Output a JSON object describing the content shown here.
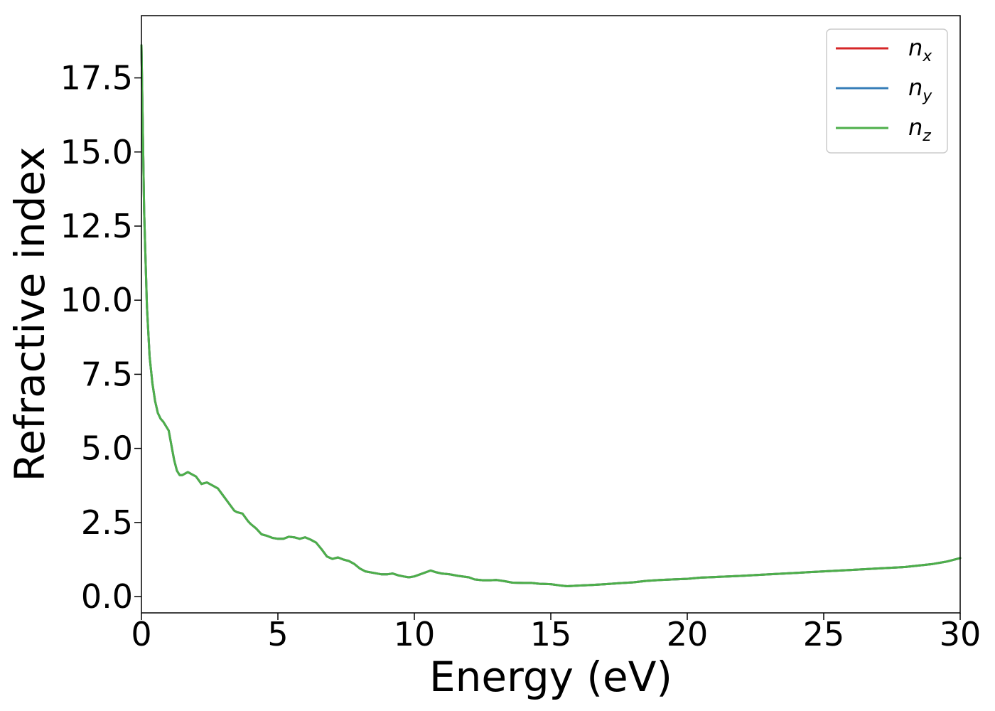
{
  "chart_data": {
    "type": "line",
    "title": "",
    "xlabel": "Energy (eV)",
    "ylabel": "Refractive index",
    "xlim": [
      0,
      30
    ],
    "ylim": [
      -0.55,
      19.6
    ],
    "xticks": [
      0,
      5,
      10,
      15,
      20,
      25,
      30
    ],
    "xtick_labels": [
      "0",
      "5",
      "10",
      "15",
      "20",
      "25",
      "30"
    ],
    "yticks": [
      0.0,
      2.5,
      5.0,
      7.5,
      10.0,
      12.5,
      15.0,
      17.5
    ],
    "ytick_labels": [
      "0.0",
      "2.5",
      "5.0",
      "7.5",
      "10.0",
      "12.5",
      "15.0",
      "17.5"
    ],
    "grid": false,
    "legend_position": "top-right",
    "x": [
      0,
      0.1,
      0.2,
      0.3,
      0.4,
      0.5,
      0.6,
      0.7,
      0.8,
      1.0,
      1.1,
      1.2,
      1.3,
      1.4,
      1.5,
      1.7,
      1.9,
      2.0,
      2.2,
      2.4,
      2.6,
      2.8,
      3.0,
      3.2,
      3.4,
      3.5,
      3.7,
      3.9,
      4.0,
      4.2,
      4.4,
      4.6,
      4.8,
      5.0,
      5.2,
      5.4,
      5.6,
      5.8,
      6.0,
      6.2,
      6.4,
      6.6,
      6.8,
      7.0,
      7.2,
      7.4,
      7.6,
      7.8,
      8.0,
      8.2,
      8.5,
      8.8,
      9.0,
      9.2,
      9.4,
      9.6,
      9.8,
      10.0,
      10.3,
      10.6,
      10.8,
      11.0,
      11.3,
      11.6,
      12.0,
      12.2,
      12.5,
      12.8,
      13.0,
      13.3,
      13.6,
      14.0,
      14.3,
      14.6,
      15.0,
      15.3,
      15.6,
      16.0,
      16.5,
      17.0,
      17.5,
      18.0,
      18.5,
      19.0,
      19.5,
      20.0,
      20.5,
      21.0,
      21.5,
      22.0,
      23.0,
      24.0,
      25.0,
      26.0,
      27.0,
      28.0,
      29.0,
      29.5,
      30.0
    ],
    "series": [
      {
        "name": "n_x",
        "label_base": "n",
        "label_sub": "x",
        "color": "#d62728",
        "values": [
          18.6,
          13.0,
          9.8,
          8.1,
          7.2,
          6.6,
          6.2,
          6.0,
          5.9,
          5.6,
          5.1,
          4.6,
          4.25,
          4.1,
          4.1,
          4.2,
          4.1,
          4.05,
          3.8,
          3.85,
          3.75,
          3.65,
          3.4,
          3.15,
          2.9,
          2.85,
          2.8,
          2.55,
          2.45,
          2.3,
          2.1,
          2.05,
          1.98,
          1.95,
          1.95,
          2.02,
          2.0,
          1.95,
          2.0,
          1.92,
          1.82,
          1.6,
          1.35,
          1.27,
          1.32,
          1.25,
          1.2,
          1.1,
          0.95,
          0.85,
          0.8,
          0.75,
          0.75,
          0.78,
          0.72,
          0.68,
          0.65,
          0.68,
          0.78,
          0.88,
          0.82,
          0.78,
          0.75,
          0.7,
          0.65,
          0.58,
          0.55,
          0.55,
          0.56,
          0.52,
          0.47,
          0.46,
          0.46,
          0.43,
          0.42,
          0.38,
          0.35,
          0.37,
          0.39,
          0.42,
          0.45,
          0.48,
          0.53,
          0.56,
          0.58,
          0.6,
          0.64,
          0.66,
          0.68,
          0.7,
          0.75,
          0.8,
          0.85,
          0.9,
          0.95,
          1.0,
          1.1,
          1.18,
          1.3
        ]
      },
      {
        "name": "n_y",
        "label_base": "n",
        "label_sub": "y",
        "color": "#377eb8",
        "values": [
          18.6,
          13.0,
          9.8,
          8.1,
          7.2,
          6.6,
          6.2,
          6.0,
          5.9,
          5.6,
          5.1,
          4.6,
          4.25,
          4.1,
          4.1,
          4.2,
          4.1,
          4.05,
          3.8,
          3.85,
          3.75,
          3.65,
          3.4,
          3.15,
          2.9,
          2.85,
          2.8,
          2.55,
          2.45,
          2.3,
          2.1,
          2.05,
          1.98,
          1.95,
          1.95,
          2.02,
          2.0,
          1.95,
          2.0,
          1.92,
          1.82,
          1.6,
          1.35,
          1.27,
          1.32,
          1.25,
          1.2,
          1.1,
          0.95,
          0.85,
          0.8,
          0.75,
          0.75,
          0.78,
          0.72,
          0.68,
          0.65,
          0.68,
          0.78,
          0.88,
          0.82,
          0.78,
          0.75,
          0.7,
          0.65,
          0.58,
          0.55,
          0.55,
          0.56,
          0.52,
          0.47,
          0.46,
          0.46,
          0.43,
          0.42,
          0.38,
          0.35,
          0.37,
          0.39,
          0.42,
          0.45,
          0.48,
          0.53,
          0.56,
          0.58,
          0.6,
          0.64,
          0.66,
          0.68,
          0.7,
          0.75,
          0.8,
          0.85,
          0.9,
          0.95,
          1.0,
          1.1,
          1.18,
          1.3
        ]
      },
      {
        "name": "n_z",
        "label_base": "n",
        "label_sub": "z",
        "color": "#4daf4a",
        "values": [
          18.6,
          13.0,
          9.8,
          8.1,
          7.2,
          6.6,
          6.2,
          6.0,
          5.9,
          5.6,
          5.1,
          4.6,
          4.25,
          4.1,
          4.1,
          4.2,
          4.1,
          4.05,
          3.8,
          3.85,
          3.75,
          3.65,
          3.4,
          3.15,
          2.9,
          2.85,
          2.8,
          2.55,
          2.45,
          2.3,
          2.1,
          2.05,
          1.98,
          1.95,
          1.95,
          2.02,
          2.0,
          1.95,
          2.0,
          1.92,
          1.82,
          1.6,
          1.35,
          1.27,
          1.32,
          1.25,
          1.2,
          1.1,
          0.95,
          0.85,
          0.8,
          0.75,
          0.75,
          0.78,
          0.72,
          0.68,
          0.65,
          0.68,
          0.78,
          0.88,
          0.82,
          0.78,
          0.75,
          0.7,
          0.65,
          0.58,
          0.55,
          0.55,
          0.56,
          0.52,
          0.47,
          0.46,
          0.46,
          0.43,
          0.42,
          0.38,
          0.35,
          0.37,
          0.39,
          0.42,
          0.45,
          0.48,
          0.53,
          0.56,
          0.58,
          0.6,
          0.64,
          0.66,
          0.68,
          0.7,
          0.75,
          0.8,
          0.85,
          0.9,
          0.95,
          1.0,
          1.1,
          1.18,
          1.3
        ]
      }
    ]
  }
}
